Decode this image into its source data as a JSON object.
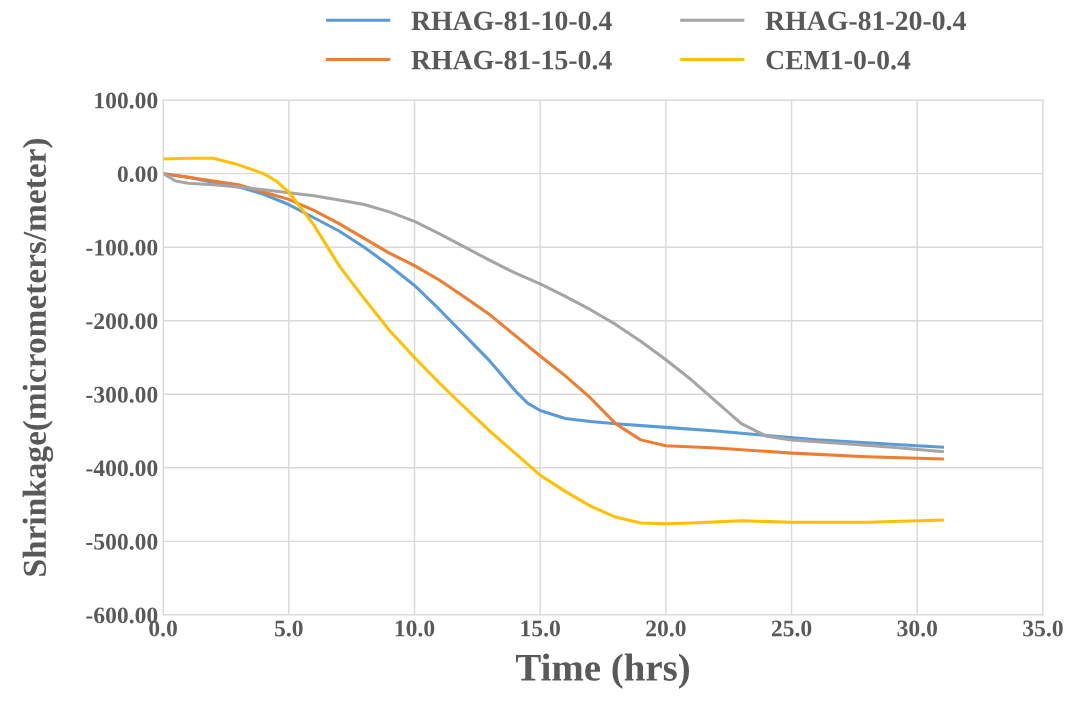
{
  "chart_data": {
    "type": "line",
    "xlabel": "Time (hrs)",
    "ylabel": "Shrinkage(micrometers/meter)",
    "xlim": [
      0,
      35
    ],
    "ylim": [
      -600,
      100
    ],
    "xticks": [
      {
        "value": 0,
        "label": "0.0"
      },
      {
        "value": 5,
        "label": "5.0"
      },
      {
        "value": 10,
        "label": "10.0"
      },
      {
        "value": 15,
        "label": "15.0"
      },
      {
        "value": 20,
        "label": "20.0"
      },
      {
        "value": 25,
        "label": "25.0"
      },
      {
        "value": 30,
        "label": "30.0"
      },
      {
        "value": 35,
        "label": "35.0"
      }
    ],
    "yticks": [
      {
        "value": 100,
        "label": "100.00"
      },
      {
        "value": 0,
        "label": "0.00"
      },
      {
        "value": -100,
        "label": "-100.00"
      },
      {
        "value": -200,
        "label": "-200.00"
      },
      {
        "value": -300,
        "label": "-300.00"
      },
      {
        "value": -400,
        "label": "-400.00"
      },
      {
        "value": -500,
        "label": "-500.00"
      },
      {
        "value": -600,
        "label": "-600.00"
      }
    ],
    "grid": true,
    "legend": "top",
    "marker": "none",
    "line_style": "solid",
    "series": [
      {
        "name": "RHAG-81-10-0.4",
        "color": "#5b9bd5",
        "x": [
          0,
          1,
          2,
          3,
          4,
          5,
          6,
          7,
          8,
          9,
          10,
          11,
          12,
          13,
          14,
          14.5,
          15,
          16,
          17,
          18,
          20,
          22,
          24,
          26,
          28,
          30,
          31
        ],
        "values": [
          0,
          -5,
          -12,
          -18,
          -28,
          -42,
          -60,
          -78,
          -100,
          -125,
          -152,
          -185,
          -220,
          -255,
          -295,
          -312,
          -322,
          -333,
          -337,
          -340,
          -345,
          -350,
          -356,
          -362,
          -366,
          -370,
          -372
        ]
      },
      {
        "name": "RHAG-81-15-0.4",
        "color": "#ed7d31",
        "x": [
          0,
          1,
          2,
          3,
          4,
          5,
          6,
          7,
          8,
          9,
          10,
          11,
          12,
          13,
          14,
          15,
          16,
          17,
          18,
          19,
          20,
          22,
          25,
          28,
          31
        ],
        "values": [
          0,
          -5,
          -10,
          -15,
          -25,
          -35,
          -50,
          -68,
          -88,
          -108,
          -125,
          -145,
          -168,
          -192,
          -220,
          -248,
          -275,
          -305,
          -340,
          -362,
          -370,
          -373,
          -380,
          -385,
          -388
        ]
      },
      {
        "name": "RHAG-81-20-0.4",
        "color": "#a5a5a5",
        "x": [
          0,
          0.5,
          1,
          2,
          3,
          4,
          5,
          6,
          7,
          8,
          9,
          10,
          11,
          12,
          13,
          14,
          15,
          16,
          17,
          18,
          19,
          20,
          21,
          22,
          23,
          24,
          25,
          27,
          29,
          31
        ],
        "values": [
          0,
          -10,
          -13,
          -15,
          -18,
          -22,
          -26,
          -30,
          -36,
          -42,
          -52,
          -65,
          -82,
          -100,
          -118,
          -135,
          -150,
          -167,
          -185,
          -205,
          -228,
          -253,
          -280,
          -310,
          -340,
          -357,
          -362,
          -367,
          -372,
          -378
        ]
      },
      {
        "name": "CEM1-0-0.4",
        "color": "#ffc000",
        "x": [
          0,
          1,
          2,
          3,
          4,
          4.5,
          5,
          6,
          7,
          8,
          9,
          10,
          11,
          12,
          13,
          14,
          15,
          16,
          17,
          18,
          19,
          20,
          21,
          23,
          25,
          28,
          31
        ],
        "values": [
          20,
          21,
          21,
          12,
          0,
          -10,
          -25,
          -70,
          -125,
          -170,
          -213,
          -250,
          -285,
          -318,
          -350,
          -380,
          -410,
          -432,
          -452,
          -467,
          -475,
          -476,
          -475,
          -472,
          -474,
          -474,
          -471
        ]
      }
    ]
  }
}
